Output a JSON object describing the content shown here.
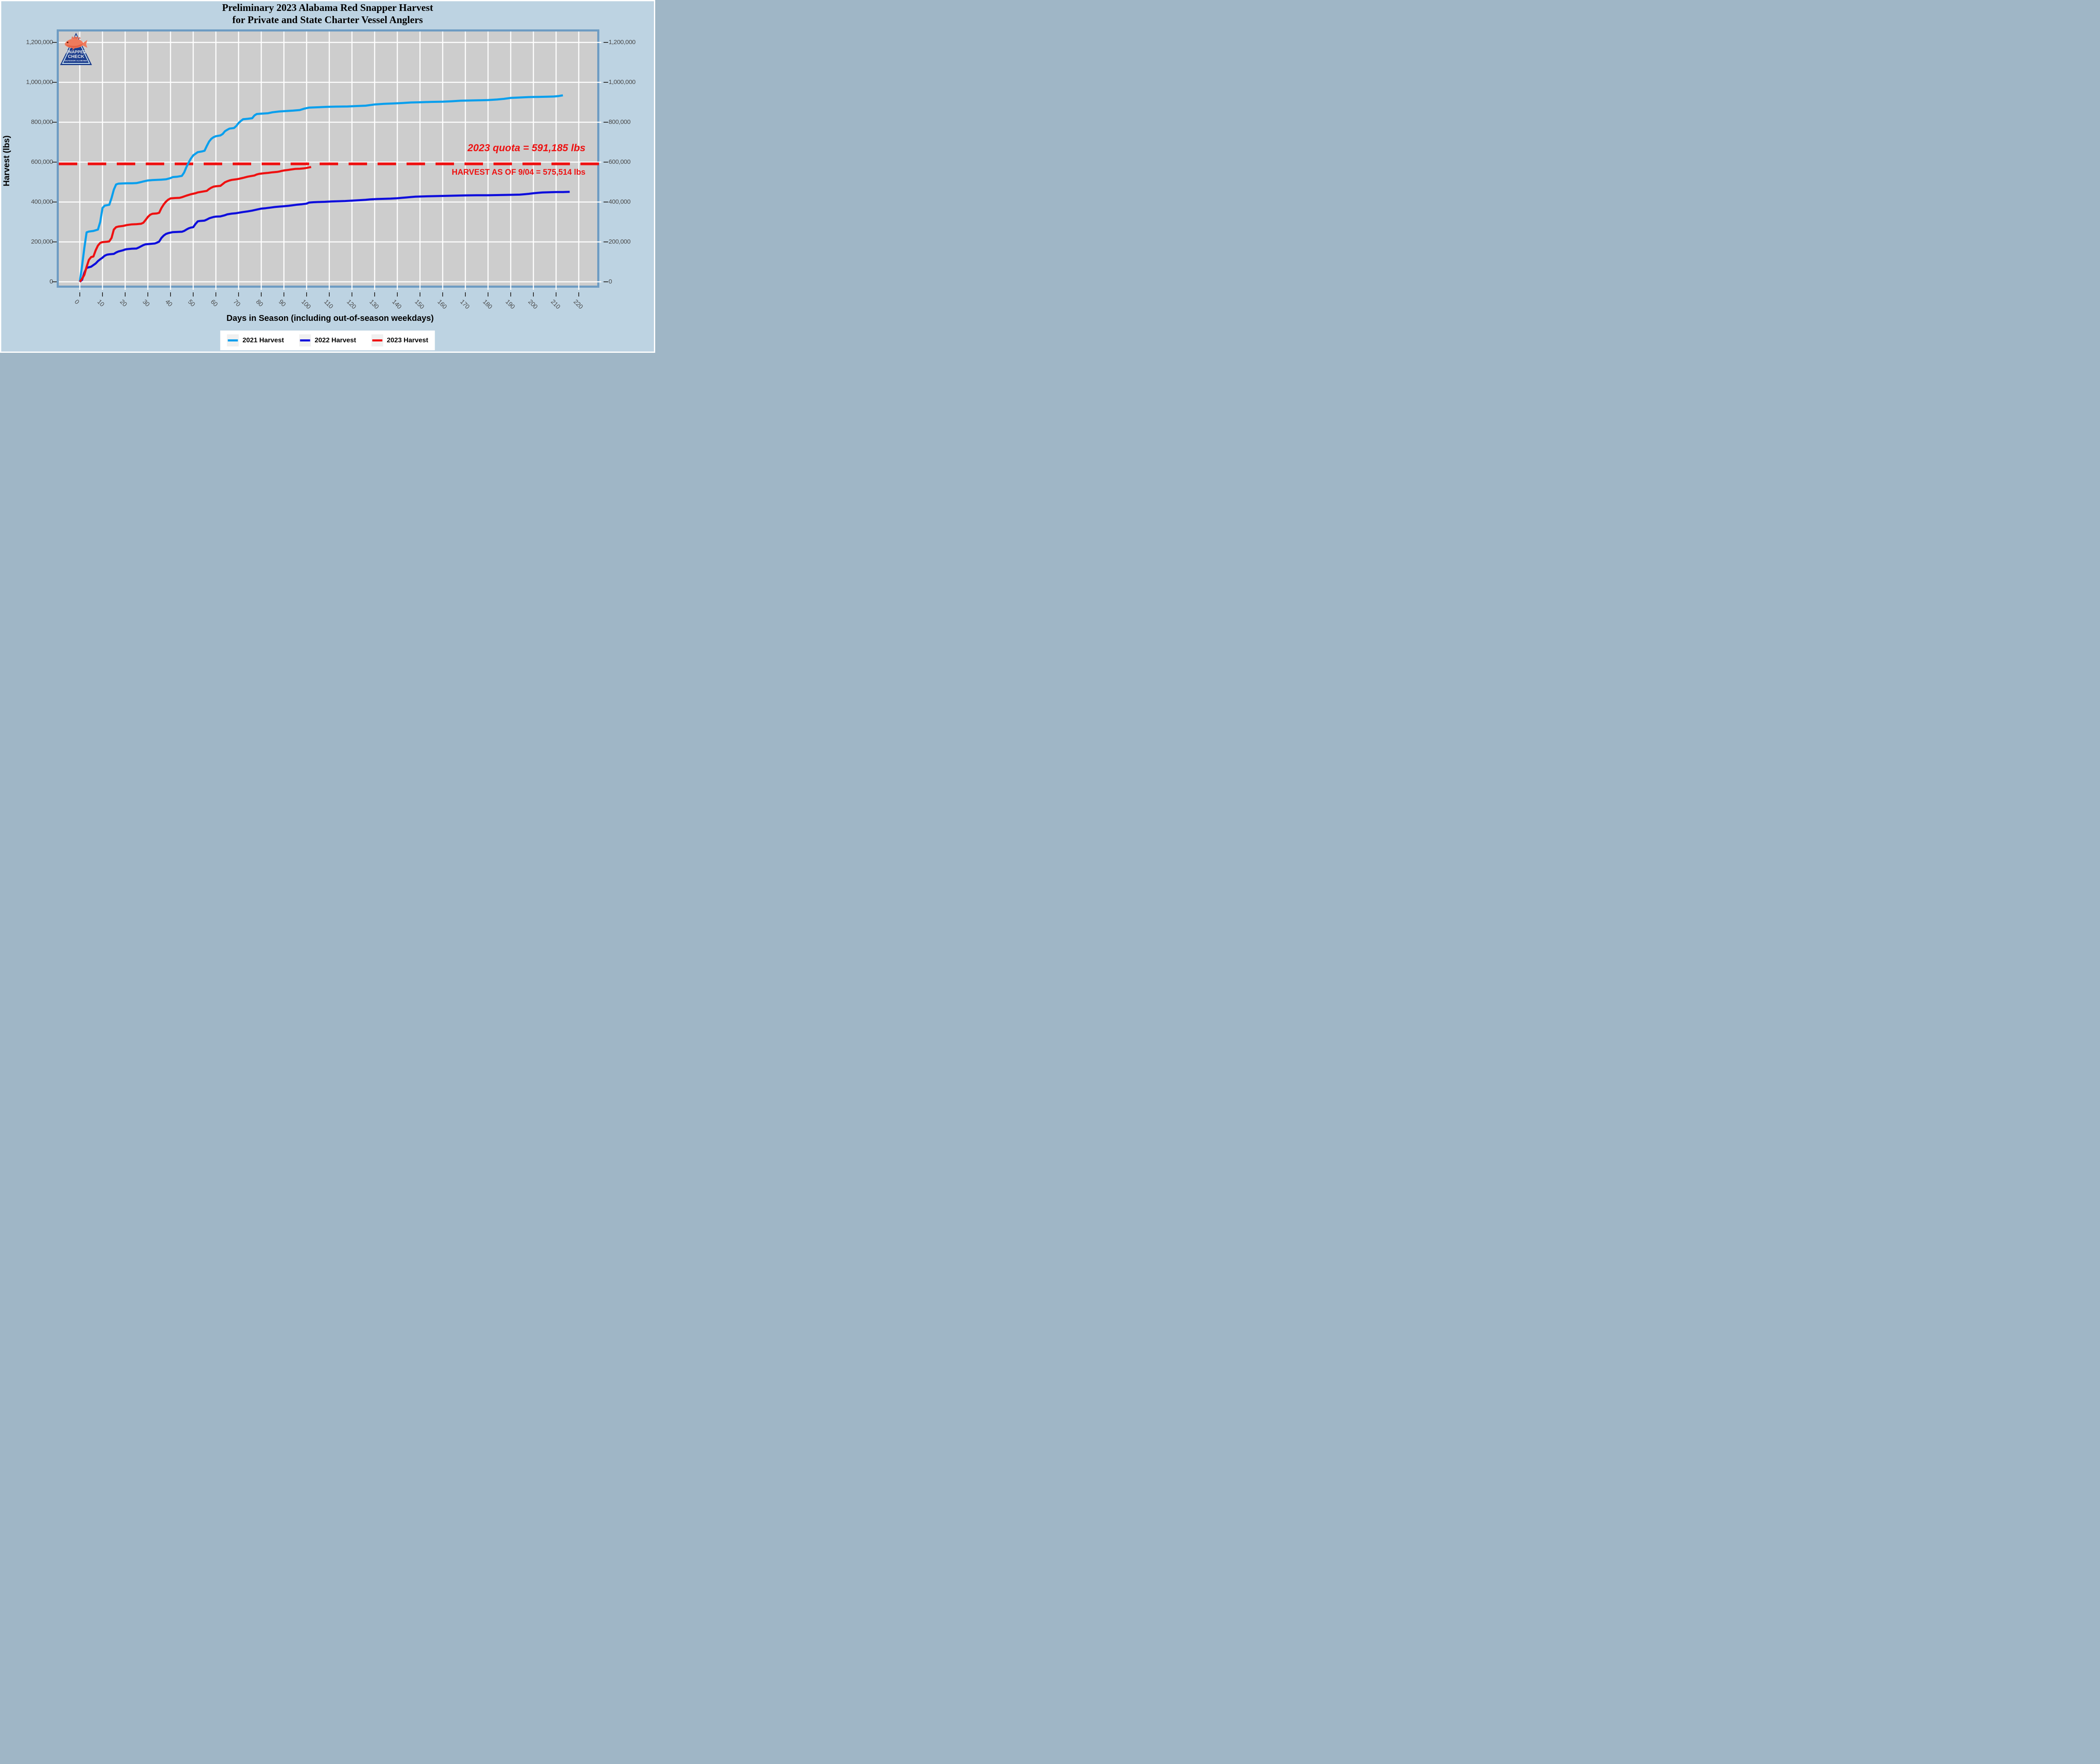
{
  "title": {
    "line1": "Preliminary 2023 Alabama Red Snapper Harvest",
    "line2": "for Private and State Charter Vessel Anglers"
  },
  "axes": {
    "x_title": "Days in Season (including out-of-season weekdays)",
    "y_title": "Harvest (lbs)",
    "x_tick_labels": [
      "0",
      "10",
      "20",
      "30",
      "40",
      "50",
      "60",
      "70",
      "80",
      "90",
      "100",
      "110",
      "120",
      "130",
      "140",
      "150",
      "160",
      "170",
      "180",
      "190",
      "200",
      "210",
      "220"
    ],
    "y_tick_labels": [
      "0",
      "200,000",
      "400,000",
      "600,000",
      "800,000",
      "1,000,000",
      "1,200,000"
    ]
  },
  "annotations": {
    "quota_text": "2023 quota = 591,185 lbs",
    "harvest_text": "HARVEST AS OF 9/04 = 575,514 lbs"
  },
  "logo": {
    "line1": "SNAPPER",
    "line2": "CHECK",
    "line3": "OUTDOOR ALABAMA"
  },
  "colors": {
    "background": "#BDD3E2",
    "panel_bg": "#CDCDCD",
    "panel_border": "#6E9CC3",
    "gridline": "#FFFFFF",
    "tick_text": "#4A4A4A",
    "annotation_red": "#EE1111"
  },
  "chart_data": {
    "type": "line",
    "title": "Preliminary 2023 Alabama Red Snapper Harvest for Private and State Charter Vessel Anglers",
    "xlabel": "Days in Season (including out-of-season weekdays)",
    "ylabel": "Harvest (lbs)",
    "xlim": [
      0,
      220
    ],
    "ylim": [
      0,
      1200000
    ],
    "x_tick_step": 10,
    "y_tick_step": 200000,
    "grid": true,
    "legend_position": "bottom",
    "quota_line": {
      "label": "2023 quota",
      "value_lbs": 591185,
      "color": "#EE1111",
      "style": "dashed"
    },
    "harvest_as_of": {
      "date": "9/04",
      "value_lbs": 575514
    },
    "series": [
      {
        "name": "2021 Harvest",
        "color": "#0A9FED",
        "points": [
          [
            0,
            0
          ],
          [
            1,
            80000
          ],
          [
            2,
            170000
          ],
          [
            3,
            248000
          ],
          [
            4,
            252000
          ],
          [
            6,
            255000
          ],
          [
            8,
            262000
          ],
          [
            9,
            300000
          ],
          [
            10,
            370000
          ],
          [
            11,
            382000
          ],
          [
            13,
            386000
          ],
          [
            14,
            420000
          ],
          [
            15,
            462000
          ],
          [
            16,
            488000
          ],
          [
            17,
            492000
          ],
          [
            19,
            493000
          ],
          [
            21,
            494000
          ],
          [
            23,
            494000
          ],
          [
            25,
            495000
          ],
          [
            27,
            500000
          ],
          [
            28,
            503000
          ],
          [
            30,
            508000
          ],
          [
            32,
            510000
          ],
          [
            34,
            511000
          ],
          [
            36,
            512000
          ],
          [
            38,
            514000
          ],
          [
            40,
            520000
          ],
          [
            41,
            525000
          ],
          [
            43,
            527000
          ],
          [
            45,
            531000
          ],
          [
            46,
            548000
          ],
          [
            47,
            575000
          ],
          [
            48,
            598000
          ],
          [
            49,
            618000
          ],
          [
            50,
            634000
          ],
          [
            51,
            642000
          ],
          [
            52,
            650000
          ],
          [
            54,
            654000
          ],
          [
            55,
            657000
          ],
          [
            56,
            681000
          ],
          [
            57,
            703000
          ],
          [
            58,
            717000
          ],
          [
            59,
            725000
          ],
          [
            60,
            730000
          ],
          [
            62,
            734000
          ],
          [
            63,
            741000
          ],
          [
            64,
            755000
          ],
          [
            65,
            762000
          ],
          [
            66,
            768000
          ],
          [
            68,
            771000
          ],
          [
            69,
            781000
          ],
          [
            70,
            796000
          ],
          [
            71,
            806000
          ],
          [
            72,
            815000
          ],
          [
            74,
            817000
          ],
          [
            76,
            820000
          ],
          [
            77,
            834000
          ],
          [
            78,
            841000
          ],
          [
            80,
            843000
          ],
          [
            83,
            845000
          ],
          [
            85,
            850000
          ],
          [
            88,
            854000
          ],
          [
            91,
            856000
          ],
          [
            94,
            858000
          ],
          [
            97,
            861000
          ],
          [
            99,
            868000
          ],
          [
            101,
            873000
          ],
          [
            105,
            875000
          ],
          [
            109,
            877000
          ],
          [
            113,
            878000
          ],
          [
            118,
            879000
          ],
          [
            122,
            881000
          ],
          [
            126,
            883000
          ],
          [
            130,
            889000
          ],
          [
            134,
            892000
          ],
          [
            138,
            894000
          ],
          [
            142,
            896000
          ],
          [
            146,
            899000
          ],
          [
            150,
            900000
          ],
          [
            155,
            902000
          ],
          [
            160,
            903000
          ],
          [
            164,
            905000
          ],
          [
            168,
            908000
          ],
          [
            172,
            909000
          ],
          [
            176,
            910000
          ],
          [
            180,
            911000
          ],
          [
            184,
            914000
          ],
          [
            187,
            917000
          ],
          [
            190,
            922000
          ],
          [
            194,
            924000
          ],
          [
            198,
            926000
          ],
          [
            202,
            927000
          ],
          [
            206,
            928000
          ],
          [
            209,
            929000
          ],
          [
            211,
            931000
          ],
          [
            213,
            935000
          ]
        ]
      },
      {
        "name": "2022 Harvest",
        "color": "#0E0EDC",
        "points": [
          [
            0,
            0
          ],
          [
            1,
            10000
          ],
          [
            2,
            45000
          ],
          [
            3,
            70000
          ],
          [
            5,
            76000
          ],
          [
            7,
            92000
          ],
          [
            8,
            104000
          ],
          [
            9,
            113000
          ],
          [
            10,
            121000
          ],
          [
            11,
            131000
          ],
          [
            12,
            136000
          ],
          [
            13,
            138000
          ],
          [
            15,
            140000
          ],
          [
            16,
            147000
          ],
          [
            17,
            152000
          ],
          [
            19,
            158000
          ],
          [
            20,
            162000
          ],
          [
            21,
            164000
          ],
          [
            23,
            166000
          ],
          [
            25,
            167000
          ],
          [
            26,
            172000
          ],
          [
            27,
            178000
          ],
          [
            28,
            184000
          ],
          [
            29,
            188000
          ],
          [
            31,
            190000
          ],
          [
            33,
            192000
          ],
          [
            34,
            196000
          ],
          [
            35,
            202000
          ],
          [
            36,
            220000
          ],
          [
            37,
            232000
          ],
          [
            38,
            240000
          ],
          [
            39,
            244000
          ],
          [
            41,
            249000
          ],
          [
            43,
            250000
          ],
          [
            45,
            251000
          ],
          [
            46,
            255000
          ],
          [
            47,
            262000
          ],
          [
            48,
            268000
          ],
          [
            49,
            272000
          ],
          [
            50,
            274000
          ],
          [
            51,
            290000
          ],
          [
            52,
            303000
          ],
          [
            53,
            305000
          ],
          [
            55,
            307000
          ],
          [
            56,
            312000
          ],
          [
            57,
            318000
          ],
          [
            58,
            322000
          ],
          [
            59,
            325000
          ],
          [
            60,
            327000
          ],
          [
            62,
            328000
          ],
          [
            63,
            331000
          ],
          [
            64,
            334000
          ],
          [
            65,
            338000
          ],
          [
            67,
            342000
          ],
          [
            69,
            344000
          ],
          [
            70,
            346000
          ],
          [
            72,
            350000
          ],
          [
            74,
            353000
          ],
          [
            76,
            357000
          ],
          [
            78,
            362000
          ],
          [
            80,
            367000
          ],
          [
            82,
            369000
          ],
          [
            84,
            372000
          ],
          [
            86,
            375000
          ],
          [
            88,
            377000
          ],
          [
            90,
            379000
          ],
          [
            92,
            381000
          ],
          [
            94,
            384000
          ],
          [
            96,
            387000
          ],
          [
            98,
            389000
          ],
          [
            100,
            392000
          ],
          [
            101,
            397000
          ],
          [
            103,
            399000
          ],
          [
            105,
            400000
          ],
          [
            108,
            401000
          ],
          [
            111,
            403000
          ],
          [
            114,
            404000
          ],
          [
            117,
            405000
          ],
          [
            120,
            407000
          ],
          [
            123,
            409000
          ],
          [
            126,
            411000
          ],
          [
            128,
            413000
          ],
          [
            131,
            415000
          ],
          [
            134,
            416000
          ],
          [
            137,
            417000
          ],
          [
            140,
            419000
          ],
          [
            142,
            421000
          ],
          [
            144,
            423000
          ],
          [
            146,
            425000
          ],
          [
            148,
            427000
          ],
          [
            151,
            428000
          ],
          [
            154,
            429000
          ],
          [
            158,
            430000
          ],
          [
            162,
            431000
          ],
          [
            166,
            432000
          ],
          [
            170,
            433000
          ],
          [
            175,
            434000
          ],
          [
            180,
            434000
          ],
          [
            185,
            435000
          ],
          [
            190,
            436000
          ],
          [
            194,
            437000
          ],
          [
            196,
            439000
          ],
          [
            198,
            441000
          ],
          [
            200,
            444000
          ],
          [
            202,
            446000
          ],
          [
            204,
            448000
          ],
          [
            207,
            449000
          ],
          [
            210,
            450000
          ],
          [
            213,
            450000
          ],
          [
            216,
            451000
          ]
        ]
      },
      {
        "name": "2023 Harvest",
        "color": "#EE1111",
        "points": [
          [
            0,
            0
          ],
          [
            1,
            15000
          ],
          [
            2,
            35000
          ],
          [
            3,
            75000
          ],
          [
            4,
            110000
          ],
          [
            5,
            124000
          ],
          [
            6,
            127000
          ],
          [
            7,
            158000
          ],
          [
            8,
            182000
          ],
          [
            9,
            195000
          ],
          [
            10,
            199000
          ],
          [
            12,
            201000
          ],
          [
            13,
            203000
          ],
          [
            14,
            220000
          ],
          [
            15,
            262000
          ],
          [
            16,
            274000
          ],
          [
            17,
            277000
          ],
          [
            19,
            280000
          ],
          [
            21,
            285000
          ],
          [
            23,
            288000
          ],
          [
            25,
            289000
          ],
          [
            27,
            291000
          ],
          [
            28,
            296000
          ],
          [
            29,
            310000
          ],
          [
            30,
            325000
          ],
          [
            31,
            336000
          ],
          [
            32,
            341000
          ],
          [
            34,
            343000
          ],
          [
            35,
            346000
          ],
          [
            36,
            370000
          ],
          [
            37,
            388000
          ],
          [
            38,
            402000
          ],
          [
            39,
            412000
          ],
          [
            40,
            418000
          ],
          [
            42,
            420000
          ],
          [
            44,
            421000
          ],
          [
            45,
            424000
          ],
          [
            47,
            432000
          ],
          [
            49,
            439000
          ],
          [
            51,
            444000
          ],
          [
            52,
            448000
          ],
          [
            54,
            452000
          ],
          [
            56,
            456000
          ],
          [
            57,
            465000
          ],
          [
            58,
            472000
          ],
          [
            59,
            477000
          ],
          [
            60,
            479000
          ],
          [
            62,
            481000
          ],
          [
            63,
            490000
          ],
          [
            64,
            499000
          ],
          [
            65,
            504000
          ],
          [
            66,
            508000
          ],
          [
            67,
            511000
          ],
          [
            69,
            514000
          ],
          [
            70,
            516000
          ],
          [
            72,
            521000
          ],
          [
            74,
            527000
          ],
          [
            75,
            529000
          ],
          [
            77,
            533000
          ],
          [
            78,
            538000
          ],
          [
            79,
            541000
          ],
          [
            81,
            544000
          ],
          [
            83,
            546000
          ],
          [
            85,
            549000
          ],
          [
            87,
            551000
          ],
          [
            88,
            553000
          ],
          [
            89,
            556000
          ],
          [
            90,
            558000
          ],
          [
            92,
            561000
          ],
          [
            93,
            563000
          ],
          [
            95,
            566000
          ],
          [
            97,
            567000
          ],
          [
            99,
            569000
          ],
          [
            100,
            571000
          ],
          [
            102,
            575514
          ]
        ]
      }
    ]
  }
}
